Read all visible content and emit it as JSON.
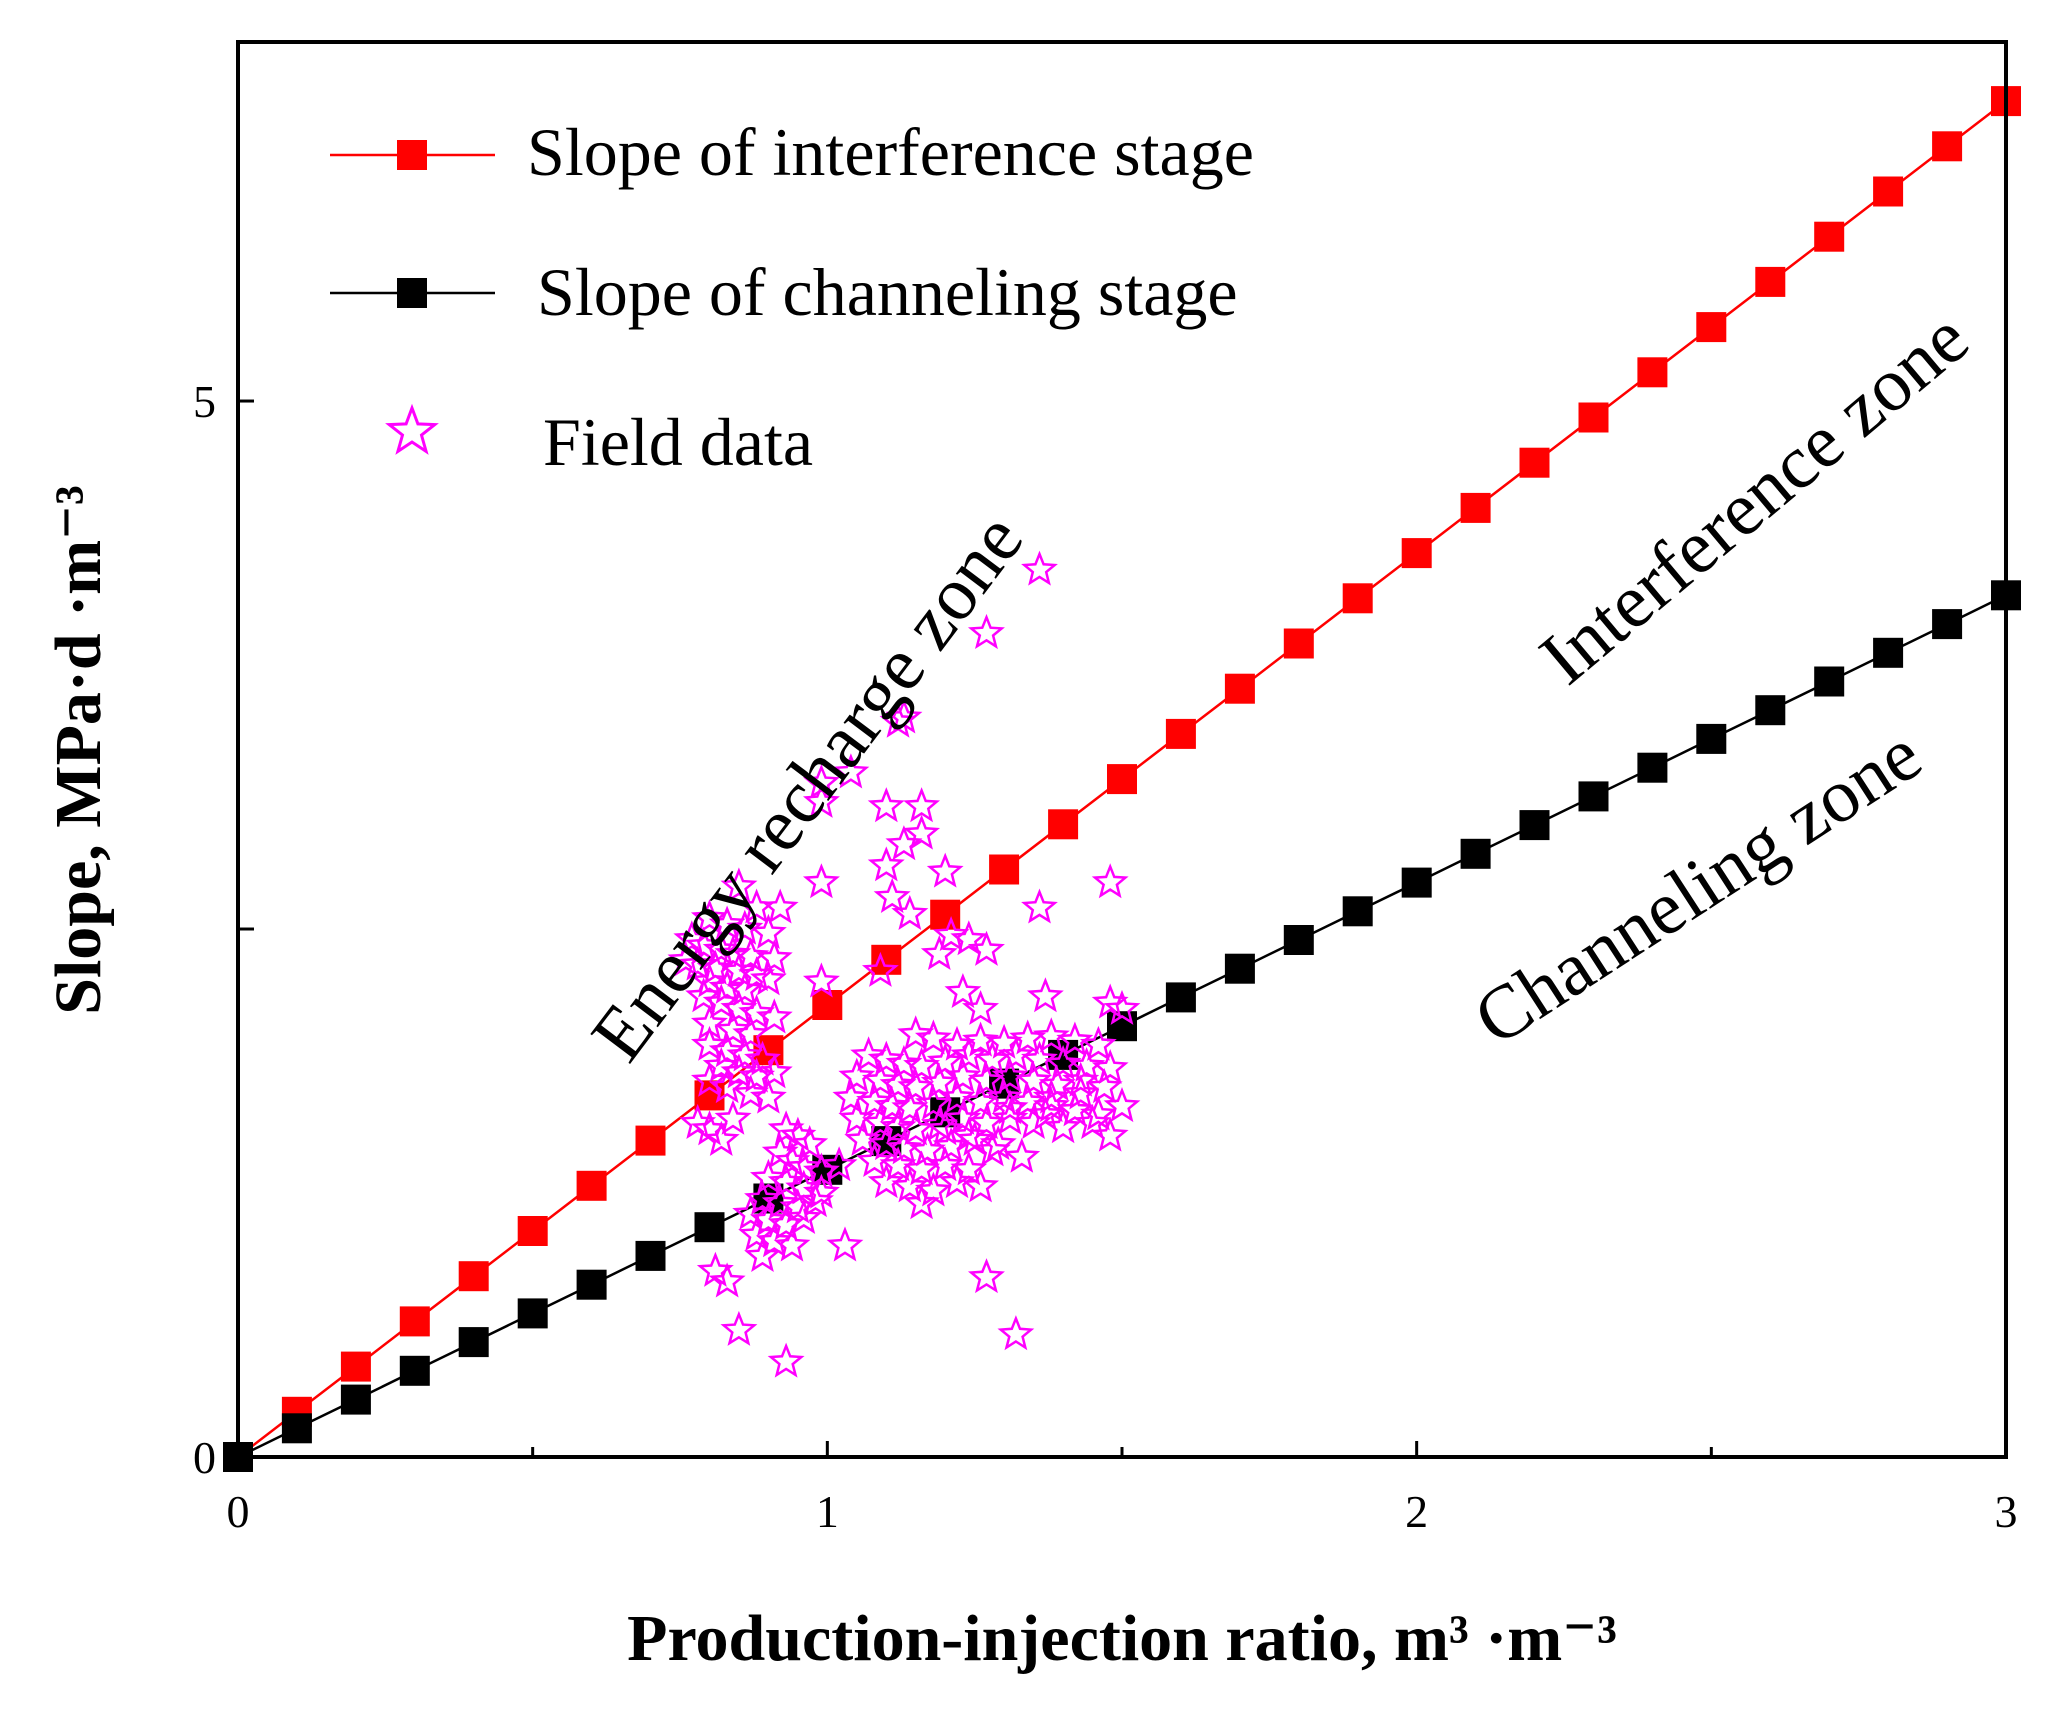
{
  "chart_data": {
    "type": "scatter",
    "xlabel": "Production-injection ratio, m³ ·m⁻³",
    "ylabel": "Slope, MPa·d ·m⁻³",
    "xlim": [
      0,
      3
    ],
    "ylim": [
      0,
      6.7
    ],
    "x_ticks": [
      "0",
      "1",
      "2",
      "3"
    ],
    "y_ticks": [
      "0",
      "",
      "5"
    ],
    "y_tick_values": [
      0,
      2.5,
      5
    ],
    "x_minor_ticks": [
      0.5,
      1.5,
      2.5
    ],
    "series": [
      {
        "name": "Slope of interference stage",
        "color": "#ff0000",
        "marker": "square",
        "x": [
          0,
          0.1,
          0.2,
          0.3,
          0.4,
          0.5,
          0.6,
          0.7,
          0.8,
          0.9,
          1.0,
          1.1,
          1.2,
          1.3,
          1.4,
          1.5,
          1.6,
          1.7,
          1.8,
          1.9,
          2.0,
          2.1,
          2.2,
          2.3,
          2.4,
          2.5,
          2.6,
          2.7,
          2.8,
          2.9,
          3.0
        ],
        "y": [
          0,
          0.214,
          0.428,
          0.642,
          0.856,
          1.07,
          1.284,
          1.498,
          1.712,
          1.926,
          2.14,
          2.354,
          2.568,
          2.782,
          2.996,
          3.21,
          3.424,
          3.638,
          3.852,
          4.066,
          4.28,
          4.494,
          4.708,
          4.922,
          5.136,
          5.35,
          5.564,
          5.778,
          5.992,
          6.206,
          6.42
        ]
      },
      {
        "name": "Slope of channeling stage",
        "color": "#000000",
        "marker": "square",
        "x": [
          0,
          0.1,
          0.2,
          0.3,
          0.4,
          0.5,
          0.6,
          0.7,
          0.8,
          0.9,
          1.0,
          1.1,
          1.2,
          1.3,
          1.4,
          1.5,
          1.6,
          1.7,
          1.8,
          1.9,
          2.0,
          2.1,
          2.2,
          2.3,
          2.4,
          2.5,
          2.6,
          2.7,
          2.8,
          2.9,
          3.0
        ],
        "y": [
          0,
          0.136,
          0.272,
          0.408,
          0.544,
          0.68,
          0.816,
          0.952,
          1.088,
          1.224,
          1.36,
          1.496,
          1.632,
          1.768,
          1.904,
          2.04,
          2.176,
          2.312,
          2.448,
          2.584,
          2.72,
          2.856,
          2.992,
          3.128,
          3.264,
          3.4,
          3.536,
          3.672,
          3.808,
          3.944,
          4.08
        ]
      },
      {
        "name": "Field data",
        "color": "#ff00ff",
        "marker": "star",
        "points": [
          [
            1.36,
            4.2
          ],
          [
            1.27,
            3.9
          ],
          [
            1.13,
            3.5
          ],
          [
            1.12,
            3.48
          ],
          [
            1.04,
            3.24
          ],
          [
            0.99,
            3.19
          ],
          [
            0.99,
            3.1
          ],
          [
            1.1,
            3.08
          ],
          [
            1.16,
            3.08
          ],
          [
            1.16,
            2.95
          ],
          [
            1.13,
            2.9
          ],
          [
            1.1,
            2.8
          ],
          [
            1.2,
            2.77
          ],
          [
            0.85,
            2.7
          ],
          [
            0.88,
            2.6
          ],
          [
            0.92,
            2.6
          ],
          [
            0.99,
            2.72
          ],
          [
            1.11,
            2.65
          ],
          [
            1.14,
            2.57
          ],
          [
            1.36,
            2.6
          ],
          [
            1.48,
            2.72
          ],
          [
            0.8,
            2.55
          ],
          [
            0.83,
            2.52
          ],
          [
            0.86,
            2.5
          ],
          [
            0.9,
            2.48
          ],
          [
            0.77,
            2.45
          ],
          [
            0.79,
            2.42
          ],
          [
            0.82,
            2.4
          ],
          [
            0.84,
            2.38
          ],
          [
            0.87,
            2.37
          ],
          [
            0.91,
            2.36
          ],
          [
            0.76,
            2.35
          ],
          [
            0.78,
            2.33
          ],
          [
            0.81,
            2.31
          ],
          [
            0.85,
            2.3
          ],
          [
            0.88,
            2.28
          ],
          [
            0.9,
            2.26
          ],
          [
            0.8,
            2.25
          ],
          [
            0.83,
            2.22
          ],
          [
            0.86,
            2.21
          ],
          [
            0.79,
            2.18
          ],
          [
            0.82,
            2.15
          ],
          [
            0.85,
            2.12
          ],
          [
            0.88,
            2.1
          ],
          [
            0.91,
            2.08
          ],
          [
            0.8,
            2.05
          ],
          [
            0.84,
            2.02
          ],
          [
            0.87,
            2.0
          ],
          [
            0.8,
            1.95
          ],
          [
            0.83,
            1.92
          ],
          [
            0.86,
            1.9
          ],
          [
            0.89,
            1.88
          ],
          [
            0.82,
            1.85
          ],
          [
            0.85,
            1.82
          ],
          [
            0.88,
            1.8
          ],
          [
            0.91,
            1.82
          ],
          [
            0.8,
            1.78
          ],
          [
            0.83,
            1.75
          ],
          [
            0.87,
            1.72
          ],
          [
            0.9,
            1.7
          ],
          [
            0.78,
            1.58
          ],
          [
            0.8,
            1.55
          ],
          [
            0.82,
            1.5
          ],
          [
            0.84,
            1.6
          ],
          [
            0.99,
            2.25
          ],
          [
            1.09,
            2.3
          ],
          [
            1.19,
            2.38
          ],
          [
            1.21,
            2.47
          ],
          [
            1.24,
            2.45
          ],
          [
            1.27,
            2.4
          ],
          [
            1.23,
            2.2
          ],
          [
            1.26,
            2.12
          ],
          [
            1.37,
            2.18
          ],
          [
            1.48,
            2.15
          ],
          [
            1.5,
            2.12
          ],
          [
            1.15,
            2.0
          ],
          [
            1.18,
            1.98
          ],
          [
            1.22,
            1.95
          ],
          [
            1.26,
            1.97
          ],
          [
            1.3,
            1.96
          ],
          [
            1.34,
            1.98
          ],
          [
            1.38,
            1.99
          ],
          [
            1.42,
            1.97
          ],
          [
            1.46,
            1.95
          ],
          [
            1.07,
            1.9
          ],
          [
            1.1,
            1.88
          ],
          [
            1.13,
            1.86
          ],
          [
            1.16,
            1.85
          ],
          [
            1.2,
            1.87
          ],
          [
            1.24,
            1.9
          ],
          [
            1.28,
            1.88
          ],
          [
            1.32,
            1.9
          ],
          [
            1.36,
            1.88
          ],
          [
            1.4,
            1.86
          ],
          [
            1.44,
            1.85
          ],
          [
            1.48,
            1.84
          ],
          [
            1.05,
            1.8
          ],
          [
            1.09,
            1.78
          ],
          [
            1.12,
            1.76
          ],
          [
            1.15,
            1.75
          ],
          [
            1.19,
            1.77
          ],
          [
            1.23,
            1.8
          ],
          [
            1.27,
            1.78
          ],
          [
            1.31,
            1.8
          ],
          [
            1.35,
            1.78
          ],
          [
            1.39,
            1.76
          ],
          [
            1.43,
            1.78
          ],
          [
            1.47,
            1.75
          ],
          [
            1.04,
            1.7
          ],
          [
            1.08,
            1.68
          ],
          [
            1.11,
            1.66
          ],
          [
            1.14,
            1.65
          ],
          [
            1.18,
            1.67
          ],
          [
            1.22,
            1.7
          ],
          [
            1.26,
            1.68
          ],
          [
            1.3,
            1.7
          ],
          [
            1.34,
            1.68
          ],
          [
            1.38,
            1.66
          ],
          [
            1.42,
            1.64
          ],
          [
            1.46,
            1.62
          ],
          [
            1.5,
            1.66
          ],
          [
            1.05,
            1.6
          ],
          [
            1.09,
            1.58
          ],
          [
            1.12,
            1.56
          ],
          [
            1.15,
            1.55
          ],
          [
            1.19,
            1.57
          ],
          [
            1.23,
            1.6
          ],
          [
            1.27,
            1.58
          ],
          [
            1.31,
            1.6
          ],
          [
            1.35,
            1.58
          ],
          [
            1.4,
            1.56
          ],
          [
            1.48,
            1.52
          ],
          [
            1.06,
            1.5
          ],
          [
            1.1,
            1.48
          ],
          [
            1.13,
            1.46
          ],
          [
            1.17,
            1.45
          ],
          [
            1.21,
            1.47
          ],
          [
            1.25,
            1.5
          ],
          [
            1.29,
            1.48
          ],
          [
            1.08,
            1.4
          ],
          [
            1.12,
            1.38
          ],
          [
            1.16,
            1.36
          ],
          [
            1.2,
            1.38
          ],
          [
            1.24,
            1.36
          ],
          [
            1.1,
            1.3
          ],
          [
            1.14,
            1.28
          ],
          [
            1.18,
            1.26
          ],
          [
            1.22,
            1.3
          ],
          [
            1.26,
            1.28
          ],
          [
            1.16,
            1.2
          ],
          [
            0.93,
            1.55
          ],
          [
            0.95,
            1.52
          ],
          [
            0.97,
            1.48
          ],
          [
            0.92,
            1.44
          ],
          [
            0.94,
            1.4
          ],
          [
            0.96,
            1.37
          ],
          [
            0.99,
            1.35
          ],
          [
            1.02,
            1.38
          ],
          [
            0.9,
            1.32
          ],
          [
            0.93,
            1.3
          ],
          [
            0.96,
            1.27
          ],
          [
            0.99,
            1.25
          ],
          [
            0.89,
            1.22
          ],
          [
            0.92,
            1.2
          ],
          [
            0.95,
            1.18
          ],
          [
            0.98,
            1.21
          ],
          [
            0.87,
            1.15
          ],
          [
            0.9,
            1.12
          ],
          [
            0.93,
            1.1
          ],
          [
            0.96,
            1.13
          ],
          [
            0.88,
            1.05
          ],
          [
            0.91,
            1.02
          ],
          [
            0.94,
            1.0
          ],
          [
            1.03,
            1.0
          ],
          [
            0.89,
            0.95
          ],
          [
            0.81,
            0.88
          ],
          [
            0.83,
            0.83
          ],
          [
            0.85,
            0.6
          ],
          [
            0.93,
            0.45
          ],
          [
            1.27,
            0.85
          ],
          [
            1.32,
            0.58
          ],
          [
            1.2,
            1.55
          ],
          [
            1.24,
            1.52
          ],
          [
            1.28,
            1.45
          ],
          [
            1.33,
            1.42
          ],
          [
            1.38,
            1.7
          ],
          [
            1.43,
            1.72
          ],
          [
            1.37,
            1.62
          ],
          [
            1.31,
            1.65
          ],
          [
            1.45,
            1.58
          ]
        ]
      }
    ],
    "legend": {
      "position": "top-left",
      "entries": [
        "Slope of interference stage",
        "Slope of channeling stage",
        "Field data"
      ]
    },
    "annotations": [
      {
        "text": "Energy recharge zone",
        "x": 1.0,
        "y": 3.1,
        "rotation_deg": -53
      },
      {
        "text": "Interference zone",
        "x": 2.6,
        "y": 4.45,
        "rotation_deg": -40
      },
      {
        "text": "Channeling zone",
        "x": 2.5,
        "y": 2.6,
        "rotation_deg": -33
      }
    ],
    "grid": false
  }
}
